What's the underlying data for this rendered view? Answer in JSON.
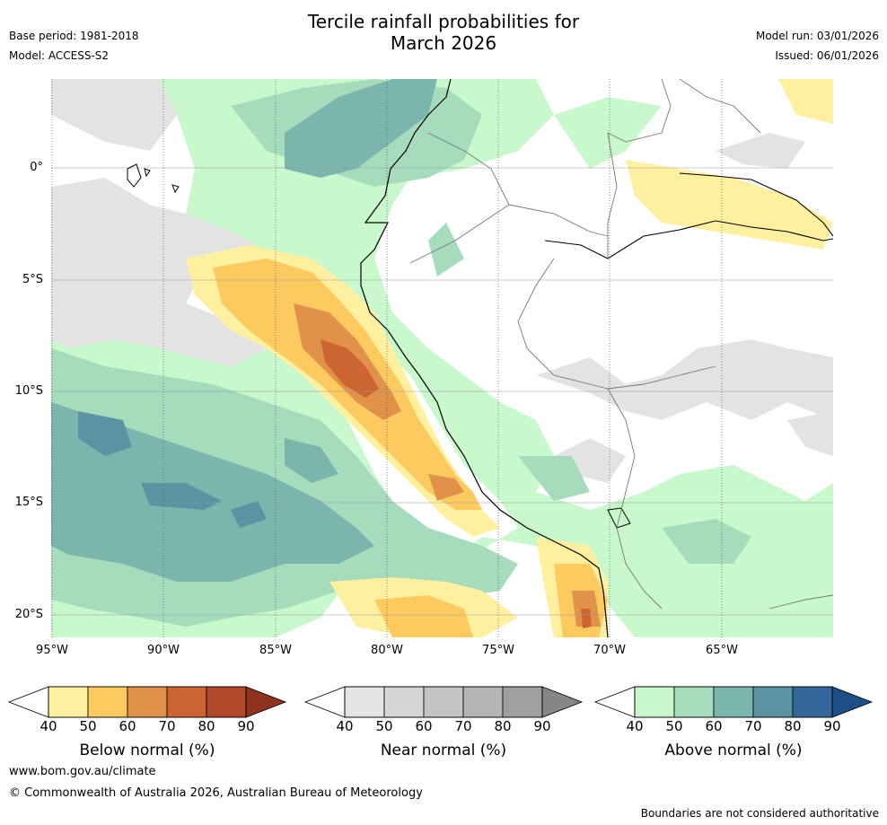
{
  "title_line1": "Tercile rainfall probabilities for",
  "title_line2": "March 2026",
  "base_period": "Base period: 1981-2018",
  "model": "Model: ACCESS-S2",
  "model_run": "Model run: 03/01/2026",
  "issued": "Issued: 06/01/2026",
  "lon_labels": [
    "95°W",
    "90°W",
    "85°W",
    "80°W",
    "75°W",
    "70°W",
    "65°W"
  ],
  "lat_labels": [
    "0°",
    "5°S",
    "10°S",
    "15°S",
    "20°S"
  ],
  "legends": {
    "below": {
      "caption": "Below normal (%)",
      "ticks": [
        "40",
        "50",
        "60",
        "70",
        "80",
        "90"
      ],
      "colors": [
        "#fff0a0",
        "#fdca5f",
        "#e0924a",
        "#cd6533",
        "#b04a28",
        "#8f3220"
      ]
    },
    "near": {
      "caption": "Near normal (%)",
      "ticks": [
        "40",
        "50",
        "60",
        "70",
        "80",
        "90"
      ],
      "colors": [
        "#e4e4e4",
        "#d6d6d6",
        "#c4c4c4",
        "#b4b4b4",
        "#a0a0a0",
        "#868686"
      ]
    },
    "above": {
      "caption": "Above normal (%)",
      "ticks": [
        "40",
        "50",
        "60",
        "70",
        "80",
        "90"
      ],
      "colors": [
        "#c8f8cb",
        "#a6dbbc",
        "#7bb6ae",
        "#5a93a1",
        "#36679b",
        "#1d4f86"
      ]
    }
  },
  "website": "www.bom.gov.au/climate",
  "copyright": "© Commonwealth of Australia 2026, Australian Bureau of Meteorology",
  "disclaimer": "Boundaries are not considered authoritative"
}
